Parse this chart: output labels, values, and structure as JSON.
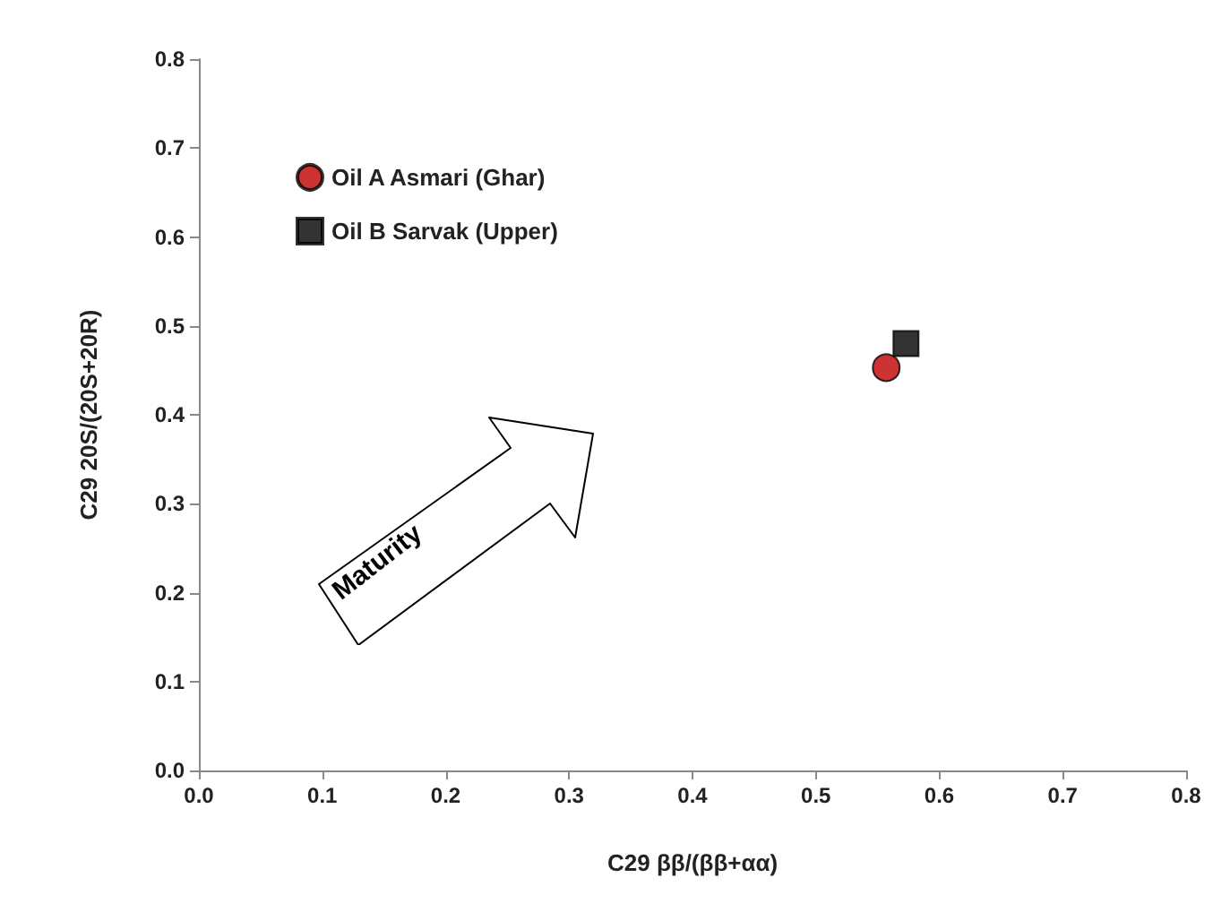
{
  "chart_data": {
    "type": "scatter",
    "xlabel": "C29 ββ/(ββ+αα)",
    "ylabel": "C29 20S/(20S+20R)",
    "xlim": [
      0,
      0.8
    ],
    "xticks": [
      {
        "value": 0,
        "label": "0.0"
      },
      0.1,
      0.2,
      0.3,
      0.4,
      0.5,
      0.6,
      0.7,
      0.8
    ],
    "ylim": [
      0,
      0.8
    ],
    "yticks": [
      {
        "value": 0,
        "label": "0.0"
      },
      0.1,
      0.2,
      0.3,
      0.4,
      0.5,
      0.6,
      0.7,
      0.8
    ],
    "grid": false,
    "legend": "top left",
    "series": [
      {
        "name": "Oil A Asmari (Ghar)",
        "color": "#c00000",
        "marker": "circle",
        "x": [
          0.557
        ],
        "values": [
          0.453
        ]
      },
      {
        "name": "Oil B Sarvak (Upper)",
        "color": "#000000",
        "marker": "square",
        "x": [
          0.573
        ],
        "values": [
          0.48
        ]
      }
    ],
    "annotations": [
      "Maturity"
    ]
  }
}
